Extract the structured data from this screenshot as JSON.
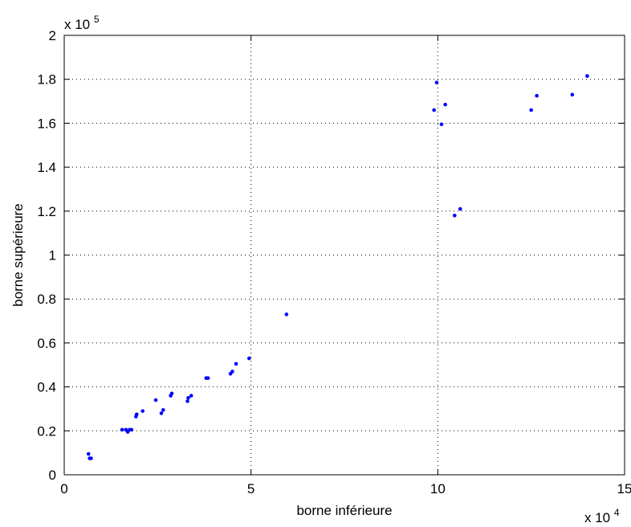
{
  "chart_data": {
    "type": "scatter",
    "title": "",
    "xlabel": "borne inférieure",
    "ylabel": "borne supérieure",
    "x_multiplier": {
      "base": "x 10",
      "exponent": "4"
    },
    "y_multiplier": {
      "base": "x 10",
      "exponent": "5"
    },
    "xlim": [
      0,
      15
    ],
    "ylim": [
      0,
      2
    ],
    "x_ticks": [
      0,
      5,
      10,
      15
    ],
    "x_tick_labels": [
      "0",
      "5",
      "10",
      "15"
    ],
    "y_ticks": [
      0,
      0.2,
      0.4,
      0.6,
      0.8,
      1,
      1.2,
      1.4,
      1.6,
      1.8,
      2
    ],
    "y_tick_labels": [
      "0",
      "0.2",
      "0.4",
      "0.6",
      "0.8",
      "1",
      "1.2",
      "1.4",
      "1.6",
      "1.8",
      "2"
    ],
    "grid": true,
    "grid_style": "dotted",
    "marker_color": "#0000ff",
    "series": [
      {
        "points": [
          [
            0.65,
            0.095
          ],
          [
            0.68,
            0.075
          ],
          [
            0.72,
            0.075
          ],
          [
            1.55,
            0.205
          ],
          [
            1.65,
            0.205
          ],
          [
            1.7,
            0.195
          ],
          [
            1.75,
            0.205
          ],
          [
            1.8,
            0.205
          ],
          [
            1.92,
            0.265
          ],
          [
            1.94,
            0.275
          ],
          [
            2.1,
            0.29
          ],
          [
            2.45,
            0.34
          ],
          [
            2.6,
            0.28
          ],
          [
            2.65,
            0.295
          ],
          [
            2.85,
            0.36
          ],
          [
            2.88,
            0.37
          ],
          [
            3.3,
            0.335
          ],
          [
            3.32,
            0.35
          ],
          [
            3.4,
            0.36
          ],
          [
            3.8,
            0.44
          ],
          [
            3.85,
            0.44
          ],
          [
            4.45,
            0.46
          ],
          [
            4.5,
            0.47
          ],
          [
            4.6,
            0.505
          ],
          [
            4.95,
            0.53
          ],
          [
            5.95,
            0.73
          ],
          [
            9.9,
            1.66
          ],
          [
            9.97,
            1.785
          ],
          [
            10.1,
            1.595
          ],
          [
            10.2,
            1.685
          ],
          [
            10.45,
            1.18
          ],
          [
            10.6,
            1.21
          ],
          [
            12.5,
            1.66
          ],
          [
            12.65,
            1.725
          ],
          [
            13.6,
            1.73
          ],
          [
            14.0,
            1.815
          ]
        ]
      }
    ]
  }
}
